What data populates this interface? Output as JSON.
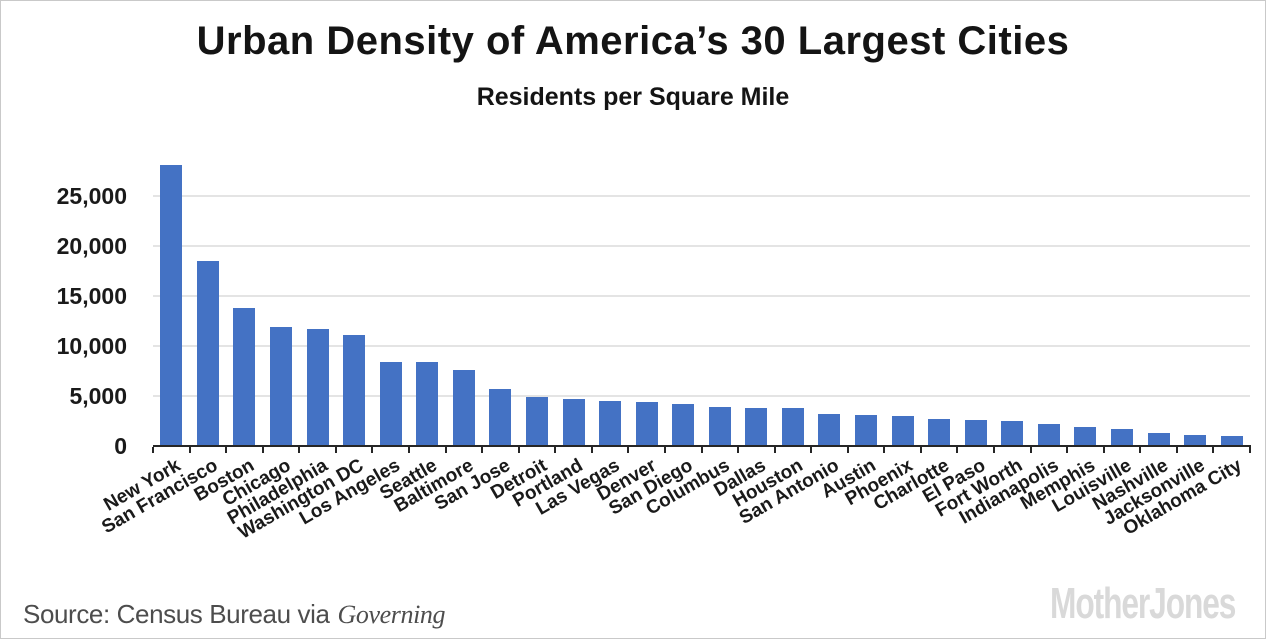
{
  "header": {
    "title": "Urban Density of America’s 30 Largest Cities",
    "subtitle": "Residents per Square Mile"
  },
  "chart_data": {
    "type": "bar",
    "title": "Urban Density of America’s 30 Largest Cities",
    "subtitle": "Residents per Square Mile",
    "xlabel": "",
    "ylabel": "",
    "categories": [
      "New York",
      "San Francisco",
      "Boston",
      "Chicago",
      "Philadelphia",
      "Washington DC",
      "Los Angeles",
      "Seattle",
      "Baltimore",
      "San Jose",
      "Detroit",
      "Portland",
      "Las Vegas",
      "Denver",
      "San Diego",
      "Columbus",
      "Dallas",
      "Houston",
      "San Antonio",
      "Austin",
      "Phoenix",
      "Charlotte",
      "El Paso",
      "Fort Worth",
      "Indianapolis",
      "Memphis",
      "Louisville",
      "Nashville",
      "Jacksonville",
      "Oklahoma City"
    ],
    "values": [
      28000,
      18400,
      13700,
      11800,
      11600,
      11000,
      8300,
      8300,
      7500,
      5600,
      4800,
      4600,
      4400,
      4300,
      4100,
      3800,
      3700,
      3700,
      3100,
      3000,
      2900,
      2600,
      2500,
      2400,
      2100,
      1800,
      1600,
      1200,
      1000,
      900
    ],
    "ylim": [
      0,
      28000
    ],
    "yticks": [
      {
        "value": 0,
        "label": "0"
      },
      {
        "value": 5000,
        "label": "5,000"
      },
      {
        "value": 10000,
        "label": "10,000"
      },
      {
        "value": 15000,
        "label": "15,000"
      },
      {
        "value": 20000,
        "label": "20,000"
      },
      {
        "value": 25000,
        "label": "25,000"
      }
    ],
    "grid": "horizontal",
    "legend": "none",
    "x_label_rotation_deg": -30,
    "bar_color": "#4472c4",
    "grid_color": "#e4e4e4",
    "axis_color": "#262626"
  },
  "footer": {
    "source_prefix": "Source: Census Bureau via",
    "source_publication": "Governing",
    "logo_text": "MotherJones"
  }
}
